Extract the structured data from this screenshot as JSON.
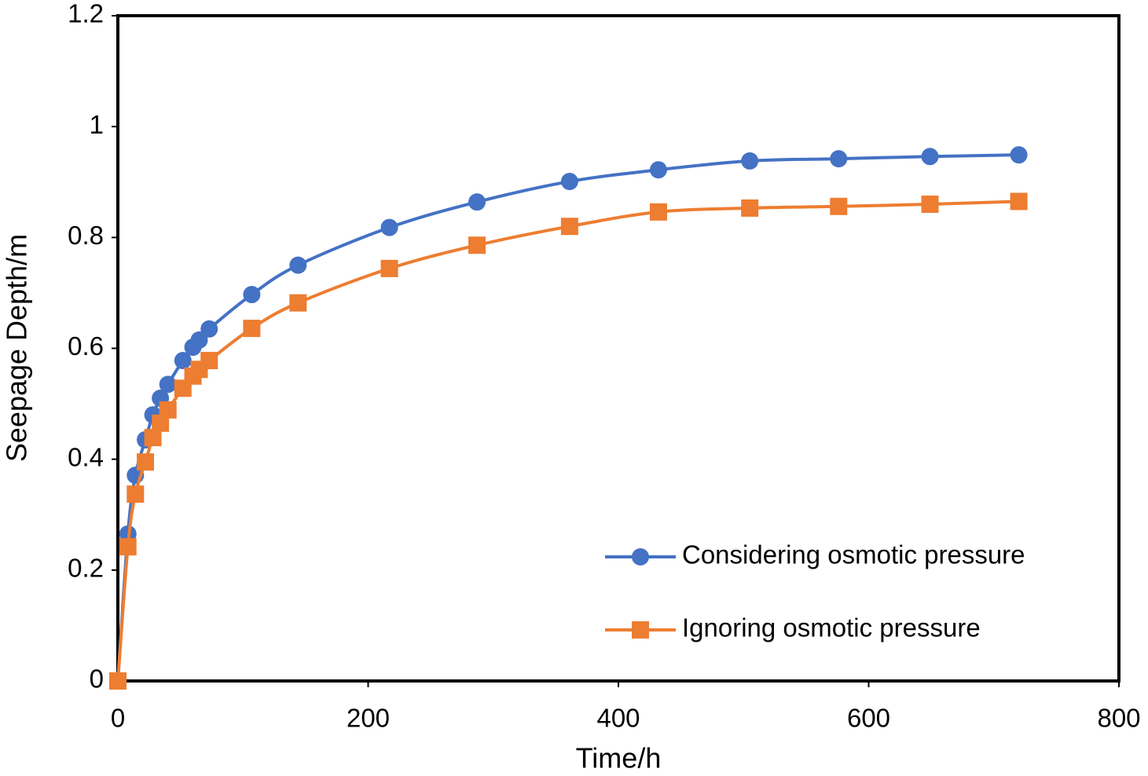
{
  "chart_data": {
    "type": "line",
    "x_label": "Time/h",
    "y_label": "Seepage Depth/m",
    "x": [
      0,
      8,
      14,
      22,
      28,
      34,
      40,
      52,
      60,
      65,
      73,
      107,
      144,
      217,
      287,
      361,
      432,
      505,
      576,
      649,
      720
    ],
    "series": [
      {
        "name": "Considering osmotic pressure",
        "color": "#4472c4",
        "marker": "circle",
        "values": [
          0,
          0.265,
          0.371,
          0.435,
          0.48,
          0.51,
          0.535,
          0.578,
          0.602,
          0.615,
          0.635,
          0.697,
          0.75,
          0.818,
          0.864,
          0.901,
          0.922,
          0.938,
          0.942,
          0.946,
          0.949
        ]
      },
      {
        "name": "Ignoring osmotic pressure",
        "color": "#ed7d31",
        "marker": "square",
        "values": [
          0,
          0.242,
          0.337,
          0.395,
          0.439,
          0.465,
          0.489,
          0.528,
          0.55,
          0.562,
          0.578,
          0.636,
          0.682,
          0.744,
          0.786,
          0.82,
          0.846,
          0.853,
          0.856,
          0.86,
          0.865
        ]
      }
    ],
    "xlim": [
      0,
      800
    ],
    "xticks": [
      0,
      200,
      400,
      600,
      800
    ],
    "ylim": [
      0,
      1.2
    ],
    "yticks": [
      0,
      0.2,
      0.4,
      0.6,
      0.8,
      1,
      1.2
    ],
    "grid": false,
    "legend": "lower right"
  }
}
